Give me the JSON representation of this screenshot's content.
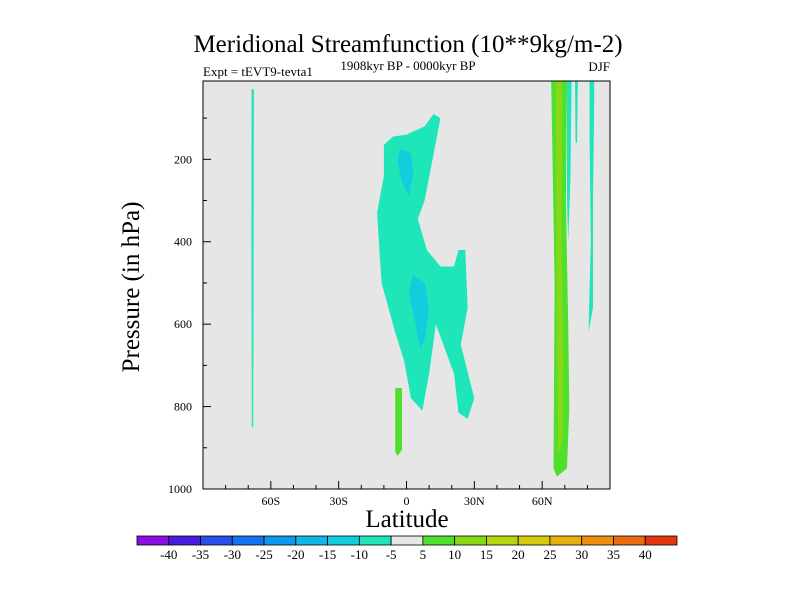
{
  "chart_data": {
    "type": "heatmap",
    "title": "Meridional Streamfunction (10**9kg/m-2)",
    "left_string": "Expt = tEVT9-tevta1",
    "center_string": "1908kyr BP - 0000kyr BP",
    "right_string": "DJF",
    "xlabel": "Latitude",
    "ylabel": "Pressure (in hPa)",
    "xlim": [
      -90,
      90
    ],
    "ylim": [
      1000,
      10
    ],
    "x_ticks": [
      {
        "value": -60,
        "label": "60S"
      },
      {
        "value": -30,
        "label": "30S"
      },
      {
        "value": 0,
        "label": "0"
      },
      {
        "value": 30,
        "label": "30N"
      },
      {
        "value": 60,
        "label": "60N"
      }
    ],
    "y_ticks": [
      {
        "value": 200,
        "label": "200"
      },
      {
        "value": 400,
        "label": "400"
      },
      {
        "value": 600,
        "label": "600"
      },
      {
        "value": 800,
        "label": "800"
      },
      {
        "value": 1000,
        "label": "1000"
      }
    ],
    "background_color": "#e6e6e6",
    "colorbar": {
      "labels": [
        "-40",
        "-35",
        "-30",
        "-25",
        "-20",
        "-15",
        "-10",
        "-5",
        "5",
        "10",
        "15",
        "20",
        "25",
        "30",
        "35",
        "40"
      ],
      "colors": [
        "#8a10e0",
        "#4a1ce0",
        "#2850e8",
        "#1474f0",
        "#0e98ee",
        "#10b6e6",
        "#12cedc",
        "#1ee6b8",
        "#e6e6e6",
        "#4ee02c",
        "#88d818",
        "#b6d410",
        "#d8ca0c",
        "#e8b00c",
        "#ee900e",
        "#ec6a10",
        "#e2380e"
      ]
    },
    "regions": [
      {
        "name": "sh-polar-strip",
        "level": "-10",
        "color": "#1ee6b8",
        "points": [
          [
            -68.5,
            30
          ],
          [
            -67.5,
            30
          ],
          [
            -67.6,
            400
          ],
          [
            -67.8,
            850
          ],
          [
            -68.4,
            850
          ],
          [
            -68.6,
            400
          ]
        ]
      },
      {
        "name": "tropical-upper-cell",
        "level": "-10",
        "color": "#1ee6b8",
        "points": [
          [
            -10,
            165
          ],
          [
            -6,
            145
          ],
          [
            0,
            140
          ],
          [
            8,
            120
          ],
          [
            12,
            90
          ],
          [
            15,
            100
          ],
          [
            11,
            215
          ],
          [
            8,
            300
          ],
          [
            5,
            345
          ],
          [
            9,
            420
          ],
          [
            15,
            460
          ],
          [
            21,
            460
          ],
          [
            23,
            420
          ],
          [
            26,
            420
          ],
          [
            27,
            560
          ],
          [
            24,
            650
          ],
          [
            30,
            780
          ],
          [
            27,
            830
          ],
          [
            23,
            815
          ],
          [
            21,
            720
          ],
          [
            13,
            600
          ],
          [
            10,
            720
          ],
          [
            7,
            810
          ],
          [
            2,
            780
          ],
          [
            -1,
            690
          ],
          [
            -5,
            620
          ],
          [
            -8,
            560
          ],
          [
            -11,
            500
          ],
          [
            -12,
            420
          ],
          [
            -13,
            330
          ],
          [
            -10,
            240
          ]
        ]
      },
      {
        "name": "tropical-upper-core",
        "level": "-15",
        "color": "#12cedc",
        "points": [
          [
            -3,
            175
          ],
          [
            2,
            185
          ],
          [
            3,
            235
          ],
          [
            1,
            290
          ],
          [
            -2,
            255
          ],
          [
            -4,
            205
          ]
        ]
      },
      {
        "name": "tropical-lower-core",
        "level": "-15",
        "color": "#12cedc",
        "points": [
          [
            3,
            480
          ],
          [
            8,
            500
          ],
          [
            10,
            560
          ],
          [
            8,
            640
          ],
          [
            6,
            660
          ],
          [
            4,
            600
          ],
          [
            1,
            520
          ]
        ]
      },
      {
        "name": "tropical-low-positive",
        "level": "10",
        "color": "#4ee02c",
        "points": [
          [
            -5,
            755
          ],
          [
            -2,
            755
          ],
          [
            -2,
            905
          ],
          [
            -4,
            920
          ],
          [
            -5,
            910
          ]
        ]
      },
      {
        "name": "nh-polar-cell-outer",
        "level": "10",
        "color": "#4ee02c",
        "points": [
          [
            64,
            10
          ],
          [
            71,
            10
          ],
          [
            70.5,
            300
          ],
          [
            71.5,
            600
          ],
          [
            72,
            800
          ],
          [
            71,
            950
          ],
          [
            66.5,
            970
          ],
          [
            65,
            950
          ],
          [
            65.5,
            500
          ]
        ]
      },
      {
        "name": "nh-polar-cell-inner",
        "level": "15",
        "color": "#88d818",
        "points": [
          [
            66,
            10
          ],
          [
            69,
            10
          ],
          [
            68.5,
            400
          ],
          [
            69.5,
            700
          ],
          [
            69,
            880
          ],
          [
            67,
            920
          ],
          [
            66.5,
            600
          ]
        ]
      },
      {
        "name": "nh-polar-strip-upper",
        "level": "-10",
        "color": "#1ee6b8",
        "points": [
          [
            74.5,
            10
          ],
          [
            75.8,
            10
          ],
          [
            75.4,
            160
          ],
          [
            74.8,
            160
          ]
        ]
      },
      {
        "name": "nh-polar-cell-upper-ext",
        "level": "-10",
        "color": "#1ee6b8",
        "points": [
          [
            71,
            10
          ],
          [
            73,
            10
          ],
          [
            72.5,
            250
          ],
          [
            71.5,
            400
          ],
          [
            71,
            300
          ]
        ]
      },
      {
        "name": "nh-polar-strip",
        "level": "-10",
        "color": "#1ee6b8",
        "points": [
          [
            81,
            10
          ],
          [
            83,
            10
          ],
          [
            83,
            60
          ],
          [
            82.5,
            300
          ],
          [
            82.5,
            560
          ],
          [
            80.5,
            620
          ],
          [
            81.5,
            400
          ],
          [
            81,
            150
          ]
        ]
      }
    ]
  }
}
